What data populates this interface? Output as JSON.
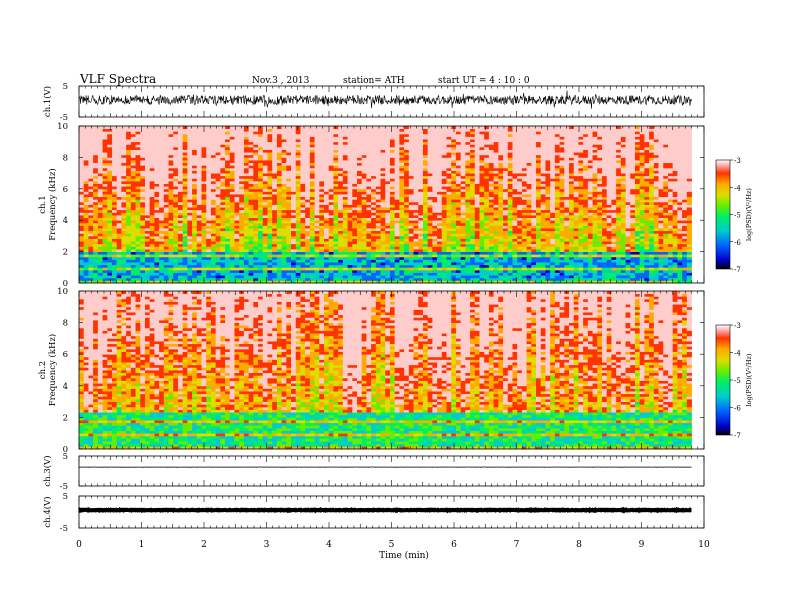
{
  "header": {
    "title": "VLF  Spectra",
    "date": "Nov.3  , 2013",
    "station": "station= ATH",
    "start": "start  UT  =   4 : 10 : 0"
  },
  "colorbar": {
    "label": "log(PSD)(V²/Hz)",
    "ticks": [
      "-3",
      "-4",
      "-5",
      "-6",
      "-7"
    ]
  },
  "chart_data": [
    {
      "type": "line",
      "panel": "ch1-waveform",
      "ylabel": "ch.1(V)",
      "yticks": [
        "5",
        "-5"
      ],
      "ylim": [
        -5,
        5
      ],
      "xlim": [
        0,
        10
      ],
      "x_end": 9.8,
      "description_values": {
        "baseline": 0.5,
        "noise_amplitude": 1.5
      }
    },
    {
      "type": "heatmap",
      "panel": "ch1-spectrogram",
      "ylabel": "ch.1\nFrequency  (kHz)",
      "yticks": [
        "0",
        "2",
        "4",
        "6",
        "8",
        "10"
      ],
      "ylim": [
        0,
        10
      ],
      "xlim": [
        0,
        10
      ],
      "x_end": 9.8,
      "zlim": [
        -7,
        -3
      ],
      "profile": {
        "low_band_khz": [
          0,
          2
        ],
        "low_band_level": -6,
        "high_level": -3.5
      }
    },
    {
      "type": "heatmap",
      "panel": "ch2-spectrogram",
      "ylabel": "ch.2\nFrequency  (kHz)",
      "yticks": [
        "0",
        "2",
        "4",
        "6",
        "8",
        "10"
      ],
      "ylim": [
        0,
        10
      ],
      "xlim": [
        0,
        10
      ],
      "x_end": 9.8,
      "zlim": [
        -7,
        -3
      ],
      "profile": {
        "low_band_khz": [
          0,
          2.3
        ],
        "low_band_level": -5.5,
        "high_level": -3.8
      }
    },
    {
      "type": "line",
      "panel": "ch3-waveform",
      "ylabel": "ch.3(V)",
      "yticks": [
        "5",
        "-5"
      ],
      "ylim": [
        -5,
        5
      ],
      "xlim": [
        0,
        10
      ],
      "x_end": 9.8,
      "description_values": {
        "baseline": 1.3,
        "noise_amplitude": 0.05
      }
    },
    {
      "type": "line",
      "panel": "ch4-waveform",
      "ylabel": "ch.4(V)",
      "yticks": [
        "5",
        "-5"
      ],
      "ylim": [
        -5,
        5
      ],
      "xlim": [
        0,
        10
      ],
      "x_end": 9.8,
      "description_values": {
        "baseline": 0.6,
        "noise_amplitude": 0.1
      }
    }
  ],
  "xaxis": {
    "label": "Time  (min)",
    "ticks": [
      "0",
      "1",
      "2",
      "3",
      "4",
      "5",
      "6",
      "7",
      "8",
      "9",
      "10"
    ]
  },
  "palette": {
    "scale": [
      "#000000",
      "#0000cc",
      "#0066ff",
      "#00cccc",
      "#00ee66",
      "#66ee00",
      "#dddd00",
      "#ffaa00",
      "#ff3300",
      "#ffcccc",
      "#ffffff"
    ]
  }
}
